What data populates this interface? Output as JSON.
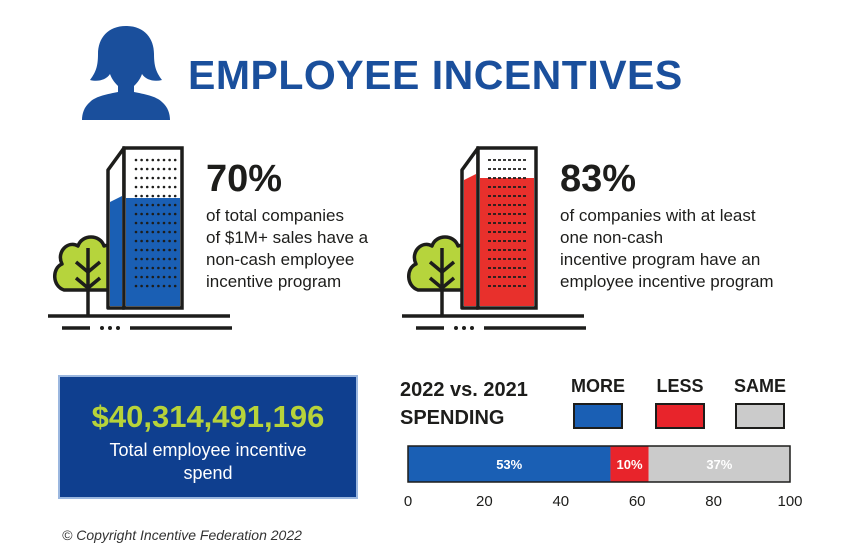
{
  "header": {
    "title": "EMPLOYEE INCENTIVES"
  },
  "icons": {
    "person": "person-silhouette-icon",
    "building": "building-icon",
    "tree": "tree-icon"
  },
  "stats": [
    {
      "percent": "70%",
      "text_lines": [
        "of total companies",
        "of $1M+ sales have a",
        "non-cash employee",
        "incentive program"
      ],
      "fill_fraction": 0.7,
      "color": "#1a5fb4"
    },
    {
      "percent": "83%",
      "text_lines": [
        "of companies with at least",
        "one non-cash",
        "incentive program have an",
        "employee incentive program"
      ],
      "fill_fraction": 0.83,
      "color": "#e8302c"
    }
  ],
  "spend": {
    "amount": "$40,314,491,196",
    "label": "Total employee incentive spend"
  },
  "chart_data": {
    "type": "bar",
    "orientation": "horizontal-stacked",
    "title_lines": [
      "2022 vs. 2021",
      "SPENDING"
    ],
    "categories": [
      "MORE",
      "LESS",
      "SAME"
    ],
    "values": [
      53,
      10,
      37
    ],
    "data_labels": [
      "53%",
      "10%",
      "37%"
    ],
    "colors": [
      "#1a5fb4",
      "#e8242b",
      "#cbcbcb"
    ],
    "xlim": [
      0,
      100
    ],
    "xticks": [
      0,
      20,
      40,
      60,
      80,
      100
    ],
    "legend_placement": "top"
  },
  "footer": {
    "copyright": "© Copyright Incentive Federation 2022"
  }
}
